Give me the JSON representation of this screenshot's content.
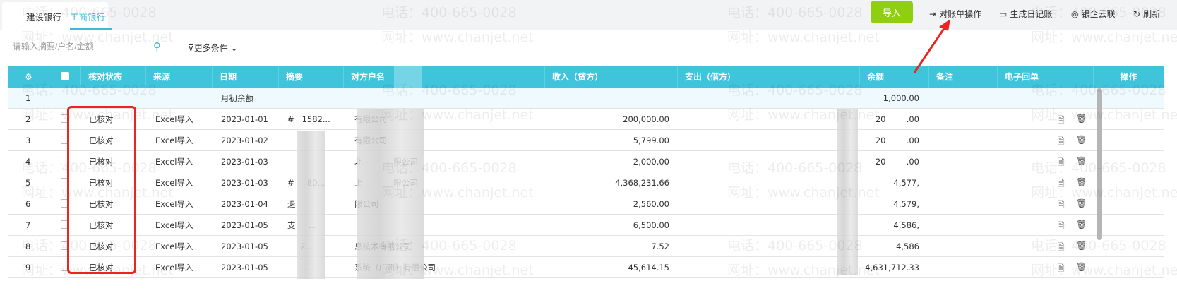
{
  "tabs": [
    {
      "label": "建设银行"
    },
    {
      "label": "工商银行",
      "active": true
    }
  ],
  "toolbar": {
    "import": "导入",
    "statement_ops": "对账单操作",
    "generate_journal": "生成日记账",
    "bank_link": "银企云联",
    "refresh": "刷新"
  },
  "search": {
    "placeholder": "请输入摘要/户名/金额",
    "value": ""
  },
  "filter": {
    "more_conditions": "更多条件"
  },
  "watermark": {
    "phone": "电话：400-665-0028",
    "site": "网址：www.chanjet.net"
  },
  "columns": [
    "核对状态",
    "来源",
    "日期",
    "摘要",
    "对方户名",
    "收入（贷方）",
    "支出（借方）",
    "余额",
    "备注",
    "电子回单",
    "操作"
  ],
  "opening_row": {
    "index": "1",
    "summary": "月初余额",
    "balance": "1,000.00"
  },
  "rows": [
    {
      "index": "2",
      "status": "已核对",
      "source": "Excel导入",
      "date": "2023-01-01",
      "summary": "#   1582...",
      "counterparty": "有限公司",
      "income": "200,000.00",
      "expense": "",
      "balance": "20        .00"
    },
    {
      "index": "3",
      "status": "已核对",
      "source": "Excel导入",
      "date": "2023-01-02",
      "summary": "",
      "counterparty": "有限公司",
      "income": "5,799.00",
      "expense": "",
      "balance": "20        .00"
    },
    {
      "index": "4",
      "status": "已核对",
      "source": "Excel导入",
      "date": "2023-01-03",
      "summary": "",
      "counterparty": "北            限公司",
      "income": "2,000.00",
      "expense": "",
      "balance": "20        .00"
    },
    {
      "index": "5",
      "status": "已核对",
      "source": "Excel导入",
      "date": "2023-01-03",
      "summary": "#     80...",
      "counterparty": "上            限公司",
      "income": "4,368,231.66",
      "expense": "",
      "balance": "4,577,"
    },
    {
      "index": "6",
      "status": "已核对",
      "source": "Excel导入",
      "date": "2023-01-04",
      "summary": "退",
      "counterparty": "限公司",
      "income": "2,560.00",
      "expense": "",
      "balance": "4,579,"
    },
    {
      "index": "7",
      "status": "已核对",
      "source": "Excel导入",
      "date": "2023-01-05",
      "summary": "支     ...",
      "counterparty": "",
      "income": "6,500.00",
      "expense": "",
      "balance": "4,586,"
    },
    {
      "index": "8",
      "status": "已核对",
      "source": "Excel导入",
      "date": "2023-01-05",
      "summary": "     2...",
      "counterparty": "息技术有限公司",
      "income": "7.52",
      "expense": "",
      "balance": "4,586"
    },
    {
      "index": "9",
      "status": "已核对",
      "source": "Excel导入",
      "date": "2023-01-05",
      "summary": "     ...",
      "counterparty": "系统（广州）有限公司",
      "income": "45,614.15",
      "expense": "",
      "balance": "4,631,712.33"
    }
  ],
  "colors": {
    "header": "#40c4dc",
    "accent": "#3bbbd6",
    "import_button": "#8fcf10",
    "annotation": "#e8261f"
  }
}
